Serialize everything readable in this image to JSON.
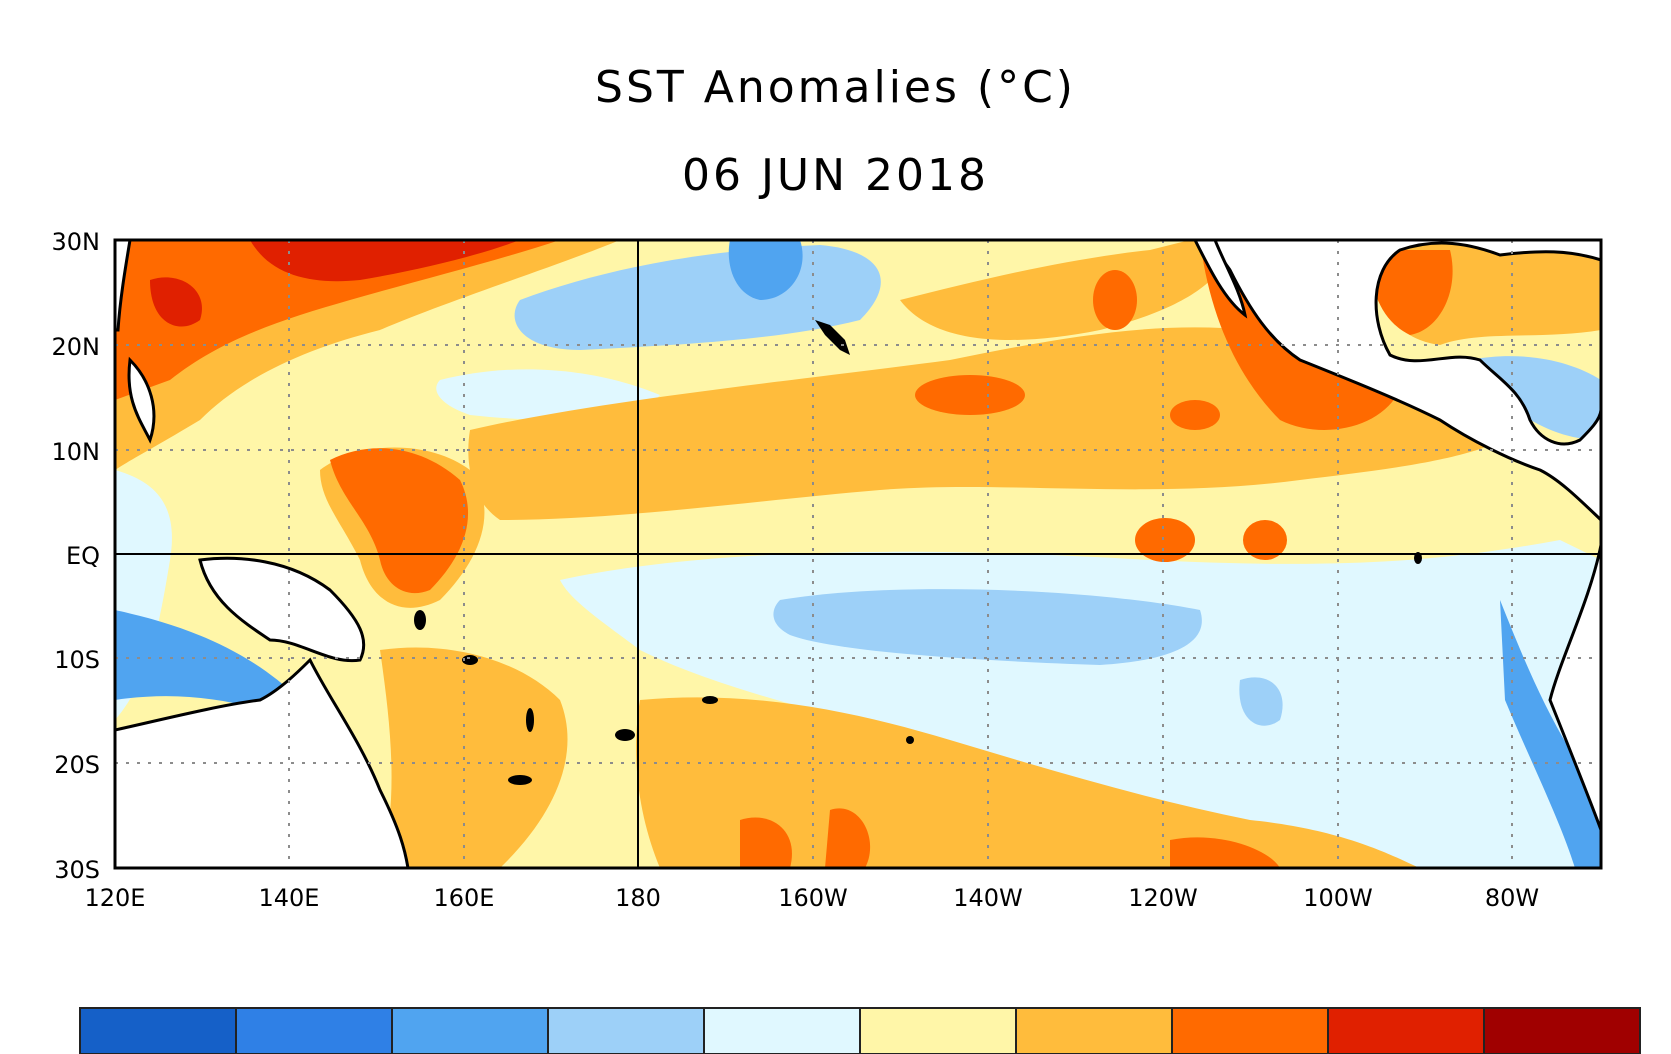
{
  "title": "SST Anomalies (°C)",
  "date": "06 JUN 2018",
  "map": {
    "lon_range": [
      120,
      290
    ],
    "lat_range": [
      -30,
      30
    ],
    "lat_labels": [
      "30N",
      "20N",
      "10N",
      "EQ",
      "10S",
      "20S",
      "30S"
    ],
    "lon_labels": [
      "120E",
      "140E",
      "160E",
      "180",
      "160W",
      "140W",
      "120W",
      "100W",
      "80W"
    ],
    "grid": "dotted"
  },
  "colorbar": {
    "colors": [
      "#1560c8",
      "#2f80e6",
      "#50a4f0",
      "#9dd0f8",
      "#e0f8ff",
      "#fff6a8",
      "#ffbc3c",
      "#ff6a00",
      "#e02000",
      "#a00000"
    ]
  },
  "colors": {
    "land": "#ffffff",
    "coast": "#000000",
    "neutral_ocean": "#fff6a8"
  }
}
